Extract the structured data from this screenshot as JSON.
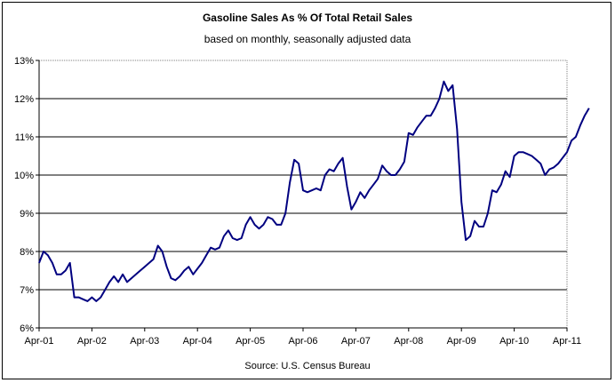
{
  "chart_data": {
    "type": "line",
    "title": "Gasoline Sales As %  Of Total Retail Sales",
    "subtitle": "based on monthly, seasonally adjusted data",
    "source": "Source: U.S. Census Bureau",
    "xlabel": "",
    "ylabel": "",
    "x_ticks": [
      "Apr-01",
      "Apr-02",
      "Apr-03",
      "Apr-04",
      "Apr-05",
      "Apr-06",
      "Apr-07",
      "Apr-08",
      "Apr-09",
      "Apr-10",
      "Apr-11"
    ],
    "y_ticks": [
      "6%",
      "7%",
      "8%",
      "9%",
      "10%",
      "11%",
      "12%",
      "13%"
    ],
    "ylim": [
      6,
      13
    ],
    "grid": true,
    "line_color": "#000080",
    "series": [
      {
        "x_start": "Apr-01",
        "frequency": "monthly",
        "values": [
          7.7,
          8.0,
          7.9,
          7.7,
          7.4,
          7.4,
          7.5,
          7.7,
          6.8,
          6.8,
          6.75,
          6.7,
          6.8,
          6.7,
          6.8,
          7.0,
          7.2,
          7.35,
          7.2,
          7.4,
          7.2,
          7.3,
          7.4,
          7.5,
          7.6,
          7.7,
          7.8,
          8.15,
          8.0,
          7.6,
          7.3,
          7.25,
          7.35,
          7.5,
          7.6,
          7.4,
          7.55,
          7.7,
          7.9,
          8.1,
          8.05,
          8.1,
          8.4,
          8.55,
          8.35,
          8.3,
          8.35,
          8.7,
          8.9,
          8.7,
          8.6,
          8.7,
          8.9,
          8.85,
          8.7,
          8.7,
          9.0,
          9.8,
          10.4,
          10.3,
          9.6,
          9.55,
          9.6,
          9.65,
          9.6,
          10.0,
          10.15,
          10.1,
          10.3,
          10.45,
          9.7,
          9.1,
          9.3,
          9.55,
          9.4,
          9.6,
          9.75,
          9.9,
          10.25,
          10.1,
          10.0,
          10.0,
          10.15,
          10.35,
          11.1,
          11.05,
          11.25,
          11.4,
          11.55,
          11.55,
          11.75,
          12.0,
          12.45,
          12.2,
          12.35,
          11.2,
          9.3,
          8.3,
          8.4,
          8.8,
          8.65,
          8.65,
          9.0,
          9.6,
          9.55,
          9.75,
          10.1,
          9.95,
          10.5,
          10.6,
          10.6,
          10.55,
          10.5,
          10.4,
          10.3,
          10.0,
          10.15,
          10.2,
          10.3,
          10.45,
          10.6,
          10.9,
          11.0,
          11.3,
          11.55,
          11.75
        ]
      }
    ]
  }
}
